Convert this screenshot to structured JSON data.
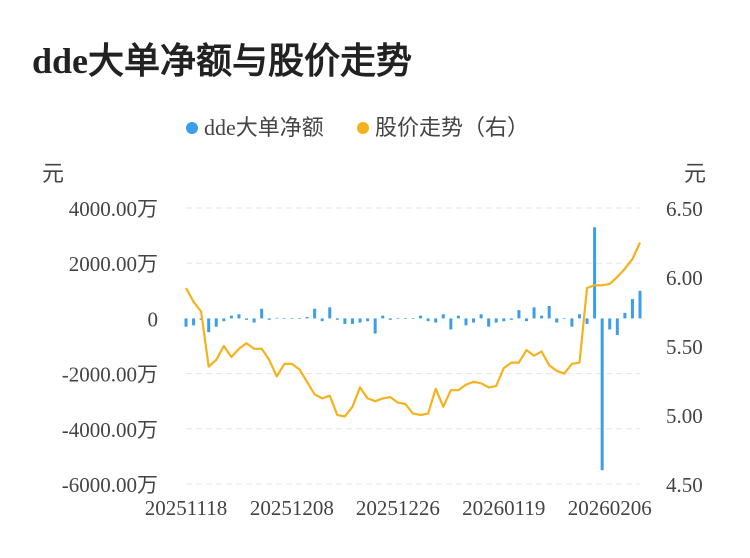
{
  "title": "dde大单净额与股价走势",
  "legend": [
    {
      "label": "dde大单净额",
      "color": "#3a9fe8"
    },
    {
      "label": "股价走势（右）",
      "color": "#f5b21c"
    }
  ],
  "units": {
    "left": "元",
    "right": "元"
  },
  "colors": {
    "bar": "#3a9fe8",
    "line": "#f5b21c",
    "grid": "#e6e6e6",
    "axis_text": "#444444"
  },
  "chart_data": {
    "type": "bar+line",
    "x_tick_labels": [
      "20251118",
      "20251208",
      "20251226",
      "20260119",
      "20260206"
    ],
    "x_tick_index": [
      0,
      14,
      28,
      42,
      56
    ],
    "left_axis": {
      "ticks": [
        4000,
        2000,
        0,
        -2000,
        -4000,
        -6000
      ],
      "tick_labels": [
        "4000.00万",
        "2000.00万",
        "0",
        "-2000.00万",
        "-4000.00万",
        "-6000.00万"
      ],
      "min": -6000,
      "max": 4000
    },
    "right_axis": {
      "ticks": [
        6.5,
        6.0,
        5.5,
        5.0,
        4.5
      ],
      "tick_labels": [
        "6.50",
        "6.00",
        "5.50",
        "5.00",
        "4.50"
      ],
      "min": 4.5,
      "max": 6.5
    },
    "series": [
      {
        "name": "dde大单净额",
        "type": "bar",
        "axis": "left",
        "values": [
          -300,
          -250,
          -50,
          -500,
          -300,
          -100,
          100,
          150,
          -50,
          -150,
          350,
          -50,
          20,
          0,
          0,
          0,
          50,
          350,
          -100,
          400,
          -50,
          -200,
          -200,
          -150,
          -100,
          -550,
          100,
          -50,
          0,
          0,
          0,
          100,
          -100,
          -150,
          150,
          -400,
          100,
          -250,
          -150,
          150,
          -300,
          -150,
          -100,
          -50,
          300,
          -100,
          400,
          100,
          450,
          -150,
          0,
          -300,
          150,
          -200,
          3300,
          -5500,
          -400,
          -600,
          200,
          700,
          1000
        ]
      },
      {
        "name": "股价走势（右）",
        "type": "line",
        "axis": "right",
        "values": [
          5.92,
          5.82,
          5.75,
          5.35,
          5.4,
          5.5,
          5.42,
          5.48,
          5.52,
          5.48,
          5.48,
          5.4,
          5.28,
          5.37,
          5.37,
          5.33,
          5.24,
          5.15,
          5.12,
          5.14,
          5.0,
          4.99,
          5.06,
          5.2,
          5.12,
          5.1,
          5.12,
          5.13,
          5.09,
          5.08,
          5.01,
          5.0,
          5.01,
          5.19,
          5.06,
          5.18,
          5.18,
          5.22,
          5.24,
          5.23,
          5.2,
          5.21,
          5.34,
          5.38,
          5.38,
          5.47,
          5.43,
          5.46,
          5.36,
          5.32,
          5.3,
          5.37,
          5.38,
          5.92,
          5.94,
          5.94,
          5.95,
          6.0,
          6.06,
          6.13,
          6.25
        ]
      }
    ]
  }
}
